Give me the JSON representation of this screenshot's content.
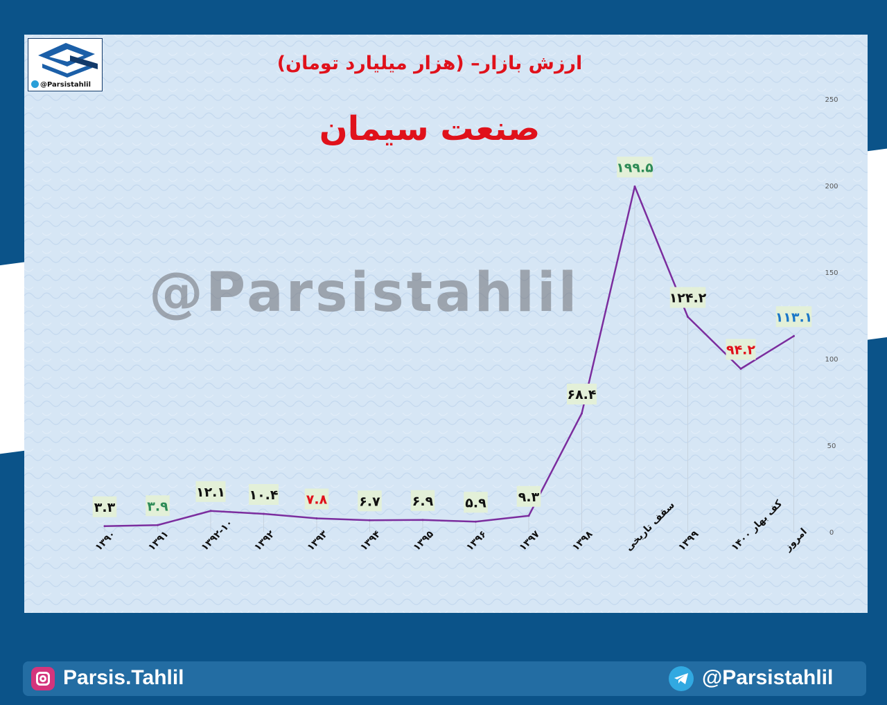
{
  "header": {
    "title": "ارزش بازار– (هزار میلیارد تومان)",
    "subtitle": "صنعت سیمان",
    "logo_handle": "@Parsistahlil",
    "watermark": "@Parsistahlil"
  },
  "footer": {
    "instagram": "Parsis.Tahlil",
    "telegram": "@Parsistahlil"
  },
  "colors": {
    "line": "#7b2d9e",
    "black_label": "#111111",
    "green_label": "#2e8b57",
    "red_label": "#e0111b",
    "blue_label": "#1a76c8",
    "label_bg": "#e3f0d8"
  },
  "chart_data": {
    "type": "line",
    "title": "ارزش بازار– (هزار میلیارد تومان)",
    "subtitle": "صنعت سیمان",
    "categories": [
      "۱۳۹۰",
      "۱۳۹۱",
      "۱۳۹۲-۱۰",
      "۱۳۹۲",
      "۱۳۹۳",
      "۱۳۹۴",
      "۱۳۹۵",
      "۱۳۹۶",
      "۱۳۹۷",
      "۱۳۹۸",
      "سقف تاریخی",
      "۱۳۹۹",
      "کف بهار ۱۴۰۰",
      "امروز"
    ],
    "values": [
      3.3,
      3.9,
      12.1,
      10.4,
      7.8,
      6.7,
      6.9,
      5.9,
      9.3,
      68.4,
      199.5,
      124.2,
      94.2,
      113.1
    ],
    "data_labels": [
      "۳.۳",
      "۳.۹",
      "۱۲.۱",
      "۱۰.۴",
      "۷.۸",
      "۶.۷",
      "۶.۹",
      "۵.۹",
      "۹.۳",
      "۶۸.۴",
      "۱۹۹.۵",
      "۱۲۴.۲",
      "۹۴.۲",
      "۱۱۳.۱"
    ],
    "label_colors": [
      "black",
      "green",
      "black",
      "black",
      "red",
      "black",
      "black",
      "black",
      "black",
      "black",
      "green",
      "black",
      "red",
      "blue"
    ],
    "ylim": [
      0,
      250
    ],
    "yticks": [
      0,
      50,
      100,
      150,
      200,
      250
    ],
    "y_axis_side": "right",
    "grid": false
  }
}
